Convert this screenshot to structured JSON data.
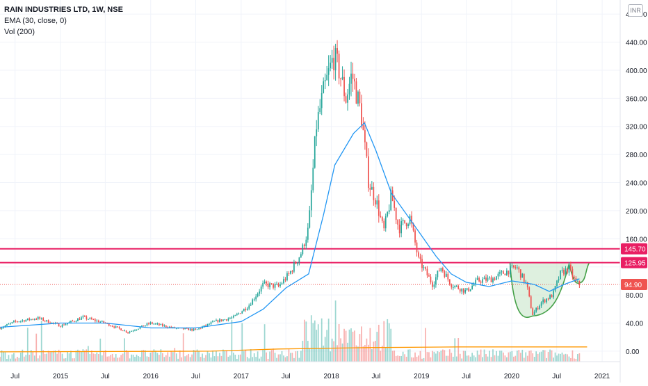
{
  "header": {
    "title": "RAIN INDUSTRIES LTD, 1W, NSE",
    "indicator_ema": "EMA (30, close, 0)",
    "indicator_vol": "Vol (200)",
    "currency": "INR"
  },
  "colors": {
    "up": "#26a69a",
    "down": "#ef5350",
    "ema": "#2196f3",
    "hline": "#e91e63",
    "pattern_fill": "#c8e6c9",
    "pattern_stroke": "#43a047",
    "vol_ma": "#ff9800"
  },
  "chart_data": {
    "type": "candlestick",
    "title": "RAIN INDUSTRIES LTD, 1W, NSE",
    "y_axis": {
      "ticks": [
        0,
        40,
        80,
        120,
        160,
        200,
        240,
        280,
        320,
        360,
        400,
        440,
        480
      ],
      "tick_labels": [
        "0.00",
        "40.00",
        "80.00",
        "",
        "160.00",
        "200.00",
        "240.00",
        "280.00",
        "320.00",
        "360.00",
        "400.00",
        "440.00",
        "480.00"
      ],
      "range": [
        -15,
        500
      ]
    },
    "x_axis": {
      "range": [
        "2014-05-01",
        "2021-03-15"
      ],
      "ticks": [
        {
          "date": "2014-07-01",
          "label": "Jul"
        },
        {
          "date": "2015-01-01",
          "label": "2015"
        },
        {
          "date": "2015-07-01",
          "label": "Jul"
        },
        {
          "date": "2016-01-01",
          "label": "2016"
        },
        {
          "date": "2016-07-01",
          "label": "Jul"
        },
        {
          "date": "2017-01-01",
          "label": "2017"
        },
        {
          "date": "2017-07-01",
          "label": "Jul"
        },
        {
          "date": "2018-01-01",
          "label": "2018"
        },
        {
          "date": "2018-07-01",
          "label": "Jul"
        },
        {
          "date": "2019-01-01",
          "label": "2019"
        },
        {
          "date": "2019-07-01",
          "label": "Jul"
        },
        {
          "date": "2020-01-01",
          "label": "2020"
        },
        {
          "date": "2020-07-01",
          "label": "Jul"
        },
        {
          "date": "2021-01-01",
          "label": "2021"
        }
      ]
    },
    "price_path": [
      [
        "2014-05-01",
        33
      ],
      [
        "2014-07-01",
        42
      ],
      [
        "2014-10-01",
        47
      ],
      [
        "2015-01-01",
        36
      ],
      [
        "2015-04-01",
        48
      ],
      [
        "2015-07-01",
        40
      ],
      [
        "2015-10-01",
        27
      ],
      [
        "2016-01-01",
        40
      ],
      [
        "2016-04-01",
        33
      ],
      [
        "2016-07-01",
        30
      ],
      [
        "2016-09-15",
        42
      ],
      [
        "2016-12-01",
        48
      ],
      [
        "2017-02-01",
        65
      ],
      [
        "2017-04-01",
        95
      ],
      [
        "2017-06-01",
        92
      ],
      [
        "2017-07-15",
        110
      ],
      [
        "2017-09-01",
        140
      ],
      [
        "2017-10-01",
        175
      ],
      [
        "2017-11-01",
        320
      ],
      [
        "2017-12-01",
        370
      ],
      [
        "2018-01-10",
        420
      ],
      [
        "2018-02-01",
        400
      ],
      [
        "2018-03-01",
        360
      ],
      [
        "2018-03-25",
        395
      ],
      [
        "2018-05-01",
        340
      ],
      [
        "2018-06-01",
        240
      ],
      [
        "2018-07-01",
        215
      ],
      [
        "2018-08-01",
        170
      ],
      [
        "2018-09-01",
        222
      ],
      [
        "2018-10-01",
        175
      ],
      [
        "2018-11-15",
        190
      ],
      [
        "2018-12-20",
        130
      ],
      [
        "2019-02-15",
        95
      ],
      [
        "2019-03-20",
        120
      ],
      [
        "2019-05-01",
        95
      ],
      [
        "2019-07-01",
        85
      ],
      [
        "2019-08-15",
        100
      ],
      [
        "2019-10-15",
        103
      ],
      [
        "2019-12-01",
        112
      ],
      [
        "2020-01-20",
        120
      ],
      [
        "2020-03-01",
        95
      ],
      [
        "2020-03-25",
        52
      ],
      [
        "2020-05-01",
        70
      ],
      [
        "2020-06-15",
        80
      ],
      [
        "2020-07-15",
        110
      ],
      [
        "2020-08-20",
        118
      ],
      [
        "2020-09-15",
        98
      ],
      [
        "2020-10-01",
        95
      ]
    ],
    "ema_points": [
      [
        "2014-05-01",
        34
      ],
      [
        "2015-01-01",
        40
      ],
      [
        "2015-07-01",
        40
      ],
      [
        "2016-01-01",
        33
      ],
      [
        "2016-07-01",
        33
      ],
      [
        "2017-01-01",
        42
      ],
      [
        "2017-04-01",
        60
      ],
      [
        "2017-07-01",
        90
      ],
      [
        "2017-10-01",
        110
      ],
      [
        "2017-12-01",
        195
      ],
      [
        "2018-01-15",
        265
      ],
      [
        "2018-04-01",
        310
      ],
      [
        "2018-05-15",
        325
      ],
      [
        "2018-07-01",
        285
      ],
      [
        "2018-09-01",
        225
      ],
      [
        "2018-12-01",
        180
      ],
      [
        "2019-03-01",
        135
      ],
      [
        "2019-05-01",
        110
      ],
      [
        "2019-07-01",
        98
      ],
      [
        "2019-10-01",
        92
      ],
      [
        "2020-01-01",
        100
      ],
      [
        "2020-04-01",
        95
      ],
      [
        "2020-06-01",
        85
      ],
      [
        "2020-08-01",
        95
      ],
      [
        "2020-10-01",
        103
      ]
    ],
    "volume_ma_points": [
      [
        "2014-05-01",
        -1
      ],
      [
        "2016-09-01",
        0
      ],
      [
        "2017-06-01",
        3
      ],
      [
        "2018-06-01",
        5
      ],
      [
        "2019-06-01",
        6
      ],
      [
        "2020-06-01",
        6
      ],
      [
        "2020-11-01",
        6
      ]
    ],
    "horizontal_lines": [
      {
        "value": 145.7,
        "label": "145.70"
      },
      {
        "value": 125.95,
        "label": "125.95"
      }
    ],
    "current_price": {
      "value": 94.9,
      "label": "94.90"
    },
    "pattern": {
      "name": "cup and handle",
      "start": [
        "2019-12-25",
        126
      ],
      "bottom": [
        "2020-03-25",
        50
      ],
      "right_rim": [
        "2020-08-20",
        124
      ],
      "handle_low": [
        "2020-10-01",
        97
      ],
      "end": [
        "2020-11-10",
        126
      ]
    }
  }
}
